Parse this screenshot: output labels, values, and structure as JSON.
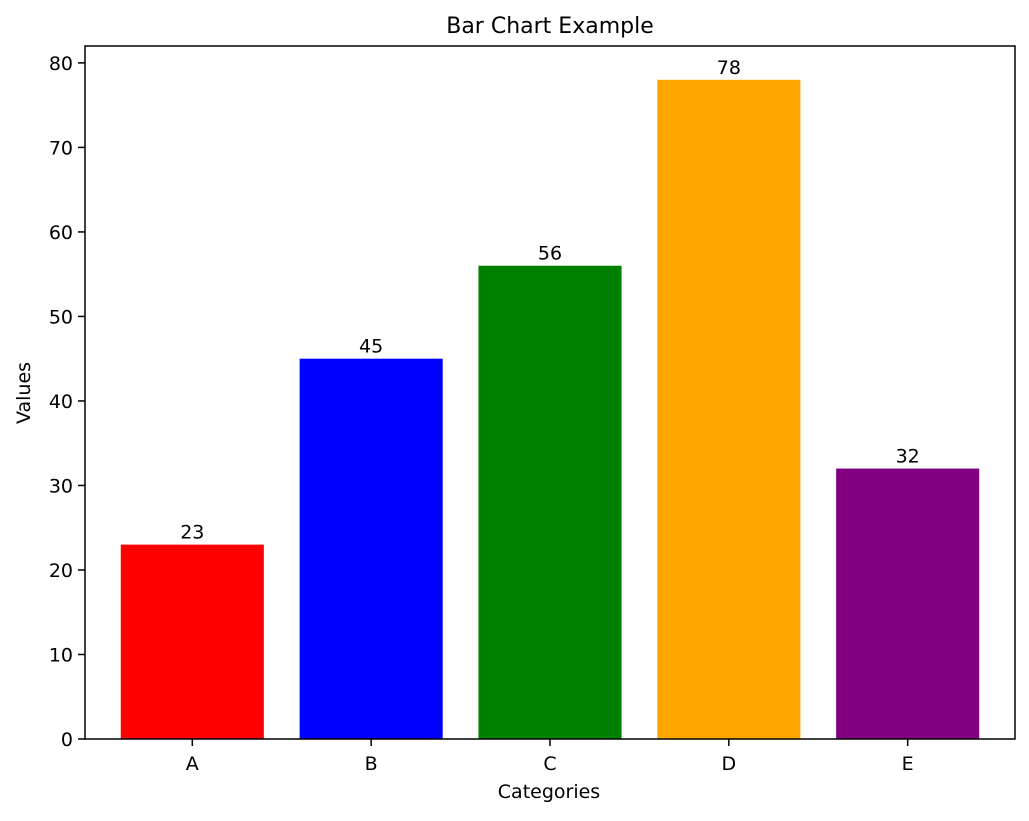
{
  "chart_data": {
    "type": "bar",
    "title": "Bar Chart Example",
    "xlabel": "Categories",
    "ylabel": "Values",
    "categories": [
      "A",
      "B",
      "C",
      "D",
      "E"
    ],
    "values": [
      23,
      45,
      56,
      78,
      32
    ],
    "colors": [
      "#ff0000",
      "#0000ff",
      "#008000",
      "#ffa500",
      "#800080"
    ],
    "ylim": [
      0,
      82
    ],
    "yticks": [
      0,
      10,
      20,
      30,
      40,
      50,
      60,
      70,
      80
    ],
    "grid": false,
    "legend": false,
    "value_labels": true
  }
}
